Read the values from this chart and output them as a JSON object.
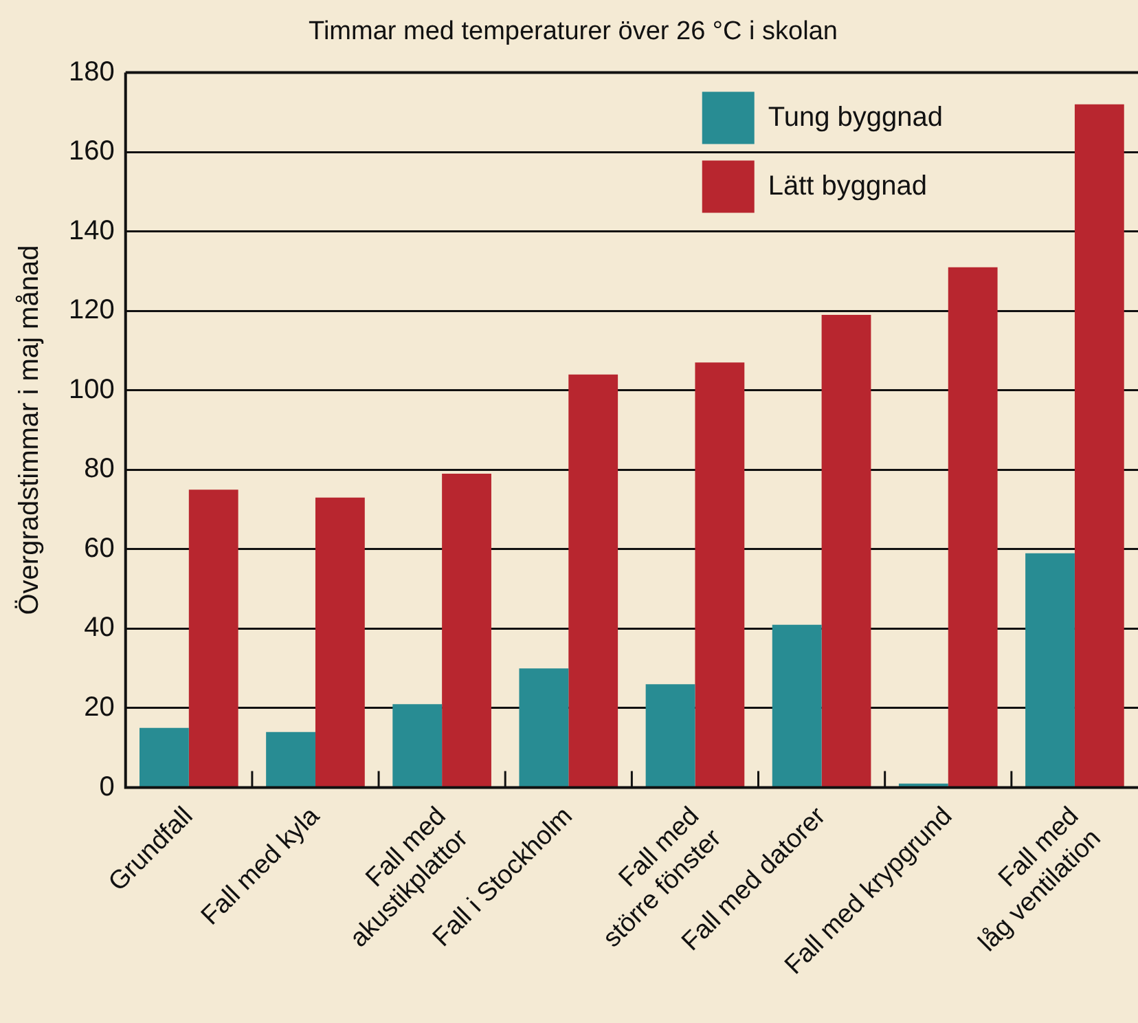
{
  "chart_data": {
    "type": "bar",
    "title": "Timmar med temperaturer över 26 °C i skolan",
    "ylabel": "Övergradstimmar i maj månad",
    "categories": [
      "Grundfall",
      "Fall med kyla",
      "Fall med\nakustikplattor",
      "Fall i Stockholm",
      "Fall med\nstörre fönster",
      "Fall med datorer",
      "Fall med krypgrund",
      "Fall med\nlåg ventilation"
    ],
    "series": [
      {
        "name": "Tung byggnad",
        "color": "#288c93",
        "values": [
          15,
          14,
          21,
          30,
          26,
          41,
          1,
          59
        ]
      },
      {
        "name": "Lätt byggnad",
        "color": "#b8262f",
        "values": [
          75,
          73,
          79,
          104,
          107,
          119,
          131,
          172
        ]
      }
    ],
    "ylim": [
      0,
      180
    ],
    "yticks": [
      0,
      20,
      40,
      60,
      80,
      100,
      120,
      140,
      160,
      180
    ],
    "grid": "y",
    "legend": "top right"
  }
}
